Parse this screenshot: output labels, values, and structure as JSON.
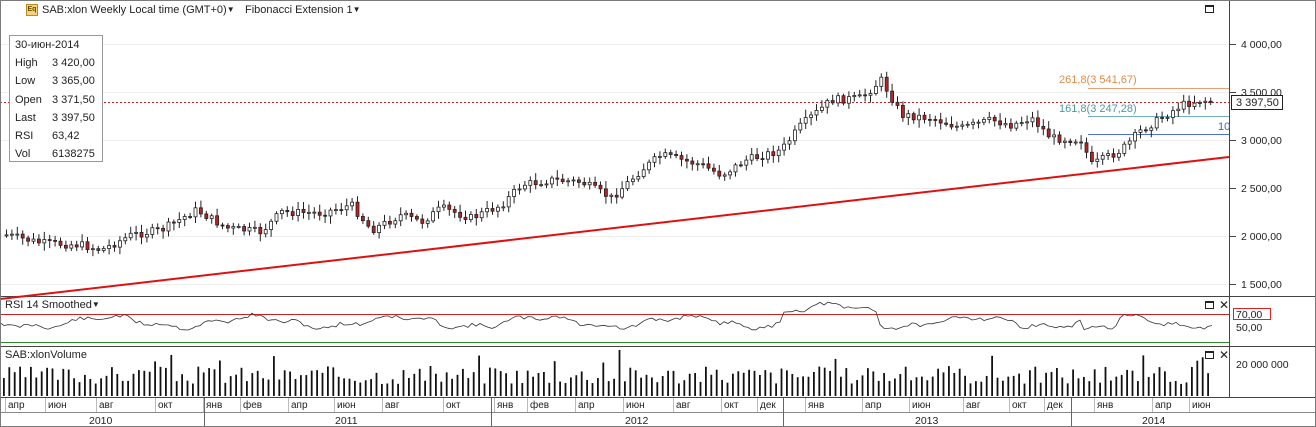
{
  "header": {
    "symbol_label": "SAB:xlon Weekly Local time (GMT+0)",
    "study_label": "Fibonacci Extension 1",
    "icon": "eq-icon",
    "icon_text": "Eq"
  },
  "infobox": {
    "date": "30-июн-2014",
    "rows": [
      {
        "label": "High",
        "value": "3 420,00"
      },
      {
        "label": "Low",
        "value": "3 365,00"
      },
      {
        "label": "Open",
        "value": "3 371,50"
      },
      {
        "label": "Last",
        "value": "3 397,50"
      },
      {
        "label": "RSI",
        "value": "63,42"
      },
      {
        "label": "Vol",
        "value": "6138275"
      }
    ]
  },
  "price_axis": {
    "labels": [
      "4 000,00",
      "3 500,00",
      "3 000,00",
      "2 500,00",
      "2 000,00",
      "1 500,00"
    ],
    "last_price": "3 397,50"
  },
  "fibonacci": {
    "levels": [
      {
        "label": "261,8(3 541,67)",
        "color": "#e08a4a"
      },
      {
        "label": "161,8(3 247,28)",
        "color": "#4a9aa8"
      },
      {
        "label": "10",
        "color": "#4060c0"
      }
    ]
  },
  "rsi_panel": {
    "title": "RSI 14 Smoothed",
    "labels": {
      "upper": "70,00",
      "mid": "50,00"
    }
  },
  "volume_panel": {
    "title": "SAB:xlonVolume",
    "axis_label": "20 000 000"
  },
  "time_axis": {
    "months": [
      "апр",
      "июн",
      "авг",
      "окт",
      "янв",
      "фев",
      "апр",
      "июн",
      "авг",
      "окт",
      "янв",
      "фев",
      "апр",
      "июн",
      "авг",
      "окт",
      "дек",
      "янв",
      "апр",
      "июн",
      "авг",
      "окт",
      "дек",
      "янв",
      "апр",
      "июн"
    ],
    "years": [
      "2010",
      "2011",
      "2012",
      "2013",
      "2014"
    ]
  },
  "colors": {
    "candle_up": "#ffffff",
    "candle_down": "#c02020",
    "trendline": "#dd1111",
    "rsi_overbought": "#cc2222",
    "rsi_oversold": "#2a8a2a"
  }
}
